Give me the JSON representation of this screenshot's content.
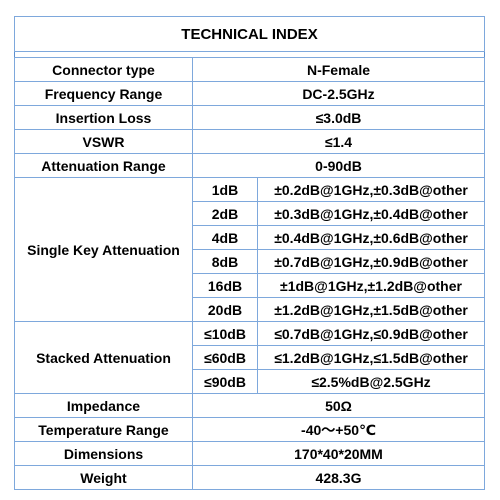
{
  "title": "TECHNICAL INDEX",
  "rows": {
    "connector_type": {
      "label": "Connector type",
      "value": "N-Female"
    },
    "frequency_range": {
      "label": "Frequency Range",
      "value": "DC-2.5GHz"
    },
    "insertion_loss": {
      "label": "Insertion Loss",
      "value": "≤3.0dB"
    },
    "vswr": {
      "label": "VSWR",
      "value": "≤1.4"
    },
    "attenuation_range": {
      "label": "Attenuation Range",
      "value": "0-90dB"
    },
    "single_key": {
      "label": "Single Key Attenuation",
      "items": [
        {
          "step": "1dB",
          "value": "±0.2dB@1GHz,±0.3dB@other"
        },
        {
          "step": "2dB",
          "value": "±0.3dB@1GHz,±0.4dB@other"
        },
        {
          "step": "4dB",
          "value": "±0.4dB@1GHz,±0.6dB@other"
        },
        {
          "step": "8dB",
          "value": "±0.7dB@1GHz,±0.9dB@other"
        },
        {
          "step": "16dB",
          "value": "±1dB@1GHz,±1.2dB@other"
        },
        {
          "step": "20dB",
          "value": "±1.2dB@1GHz,±1.5dB@other"
        }
      ]
    },
    "stacked": {
      "label": "Stacked Attenuation",
      "items": [
        {
          "step": "≤10dB",
          "value": "≤0.7dB@1GHz,≤0.9dB@other"
        },
        {
          "step": "≤60dB",
          "value": "≤1.2dB@1GHz,≤1.5dB@other"
        },
        {
          "step": "≤90dB",
          "value": "≤2.5%dB@2.5GHz"
        }
      ]
    },
    "impedance": {
      "label": "Impedance",
      "value": "50Ω"
    },
    "temperature_range": {
      "label": "Temperature Range",
      "value": "-40～+50℃"
    },
    "dimensions": {
      "label": "Dimensions",
      "value": "170*40*20MM"
    },
    "weight": {
      "label": "Weight",
      "value": "428.3G"
    }
  },
  "colors": {
    "border": "#7ea8dc",
    "text": "#000000",
    "background": "#ffffff"
  }
}
